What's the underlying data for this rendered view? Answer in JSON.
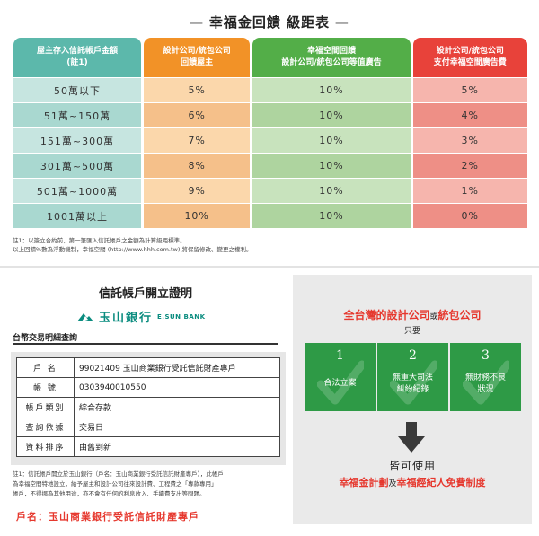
{
  "tier_title": "幸福金回饋 級距表",
  "tier_table": {
    "headers": [
      {
        "line1": "屋主存入信託帳戶金額",
        "line2": "(註1)"
      },
      {
        "line1": "設計公司/統包公司",
        "line2": "回饋屋主"
      },
      {
        "line1": "幸福空間回饋",
        "line2": "設計公司/統包公司等值廣告"
      },
      {
        "line1": "設計公司/統包公司",
        "line2": "支付幸福空間廣告費"
      }
    ],
    "rows": [
      {
        "amount": "50萬以下",
        "owner": "5%",
        "ad_value": "10%",
        "ad_fee": "5%"
      },
      {
        "amount": "51萬~150萬",
        "owner": "6%",
        "ad_value": "10%",
        "ad_fee": "4%"
      },
      {
        "amount": "151萬~300萬",
        "owner": "7%",
        "ad_value": "10%",
        "ad_fee": "3%"
      },
      {
        "amount": "301萬~500萬",
        "owner": "8%",
        "ad_value": "10%",
        "ad_fee": "2%"
      },
      {
        "amount": "501萬~1000萬",
        "owner": "9%",
        "ad_value": "10%",
        "ad_fee": "1%"
      },
      {
        "amount": "1001萬以上",
        "owner": "10%",
        "ad_value": "10%",
        "ad_fee": "0%"
      }
    ]
  },
  "note1": {
    "line1": "註1：以簽立合約前，第一筆匯入信託帳戶之金額為計算級距標準。",
    "line2": "以上回饋%數為浮動機制，幸福空間 (http://www.hhh.com.tw) 將保留修改、變更之權利。"
  },
  "trust_title": "信託帳戶開立證明",
  "bank": {
    "name": "玉山銀行",
    "name_en": "E.SUN BANK"
  },
  "query_title": "台幣交易明細查詢",
  "account_rows": [
    {
      "key": "戶 名",
      "value": "99021409 玉山商業銀行受託信託財產專戶"
    },
    {
      "key": "帳 號",
      "value": "0303940010550"
    },
    {
      "key": "帳戶類別",
      "value": "綜合存款"
    },
    {
      "key": "查詢依據",
      "value": "交易日"
    },
    {
      "key": "資料排序",
      "value": "由舊到新"
    }
  ],
  "note2": {
    "line1": "註1：信託帳戶開立於玉山銀行（戶名：玉山商業銀行受託信託財產專戶），此帳戶",
    "line2": "為幸福空間特地設立，給予屋主和設計公司往來設計費、工程費之「專款專用」",
    "line3": "帳戶，不得挪為其他用途，亦不會有任何的利息收入、手續費支出等問題。"
  },
  "account_name_line": "戶名：玉山商業銀行受託信託財產專戶",
  "panel": {
    "title_red": "全台灣的設計公司",
    "title_or": "或",
    "title_red2": "統包公司",
    "subtitle": "只要",
    "boxes": [
      {
        "num": "1",
        "text": "合法立案"
      },
      {
        "num": "2",
        "text": "無重大司法\n糾紛紀錄"
      },
      {
        "num": "3",
        "text": "無財務不良\n狀況"
      }
    ],
    "can_use": "皆可使用",
    "plan1": "幸福金計劃",
    "and": "及",
    "plan2": "幸福經紀人免費制度"
  },
  "colors": {
    "teal": "#5cb8ab",
    "orange": "#f29227",
    "green": "#53ae48",
    "red": "#e8423a",
    "bank_green": "#0a8c7f",
    "box_green": "#2e9a46",
    "accent_red": "#e6382e"
  }
}
